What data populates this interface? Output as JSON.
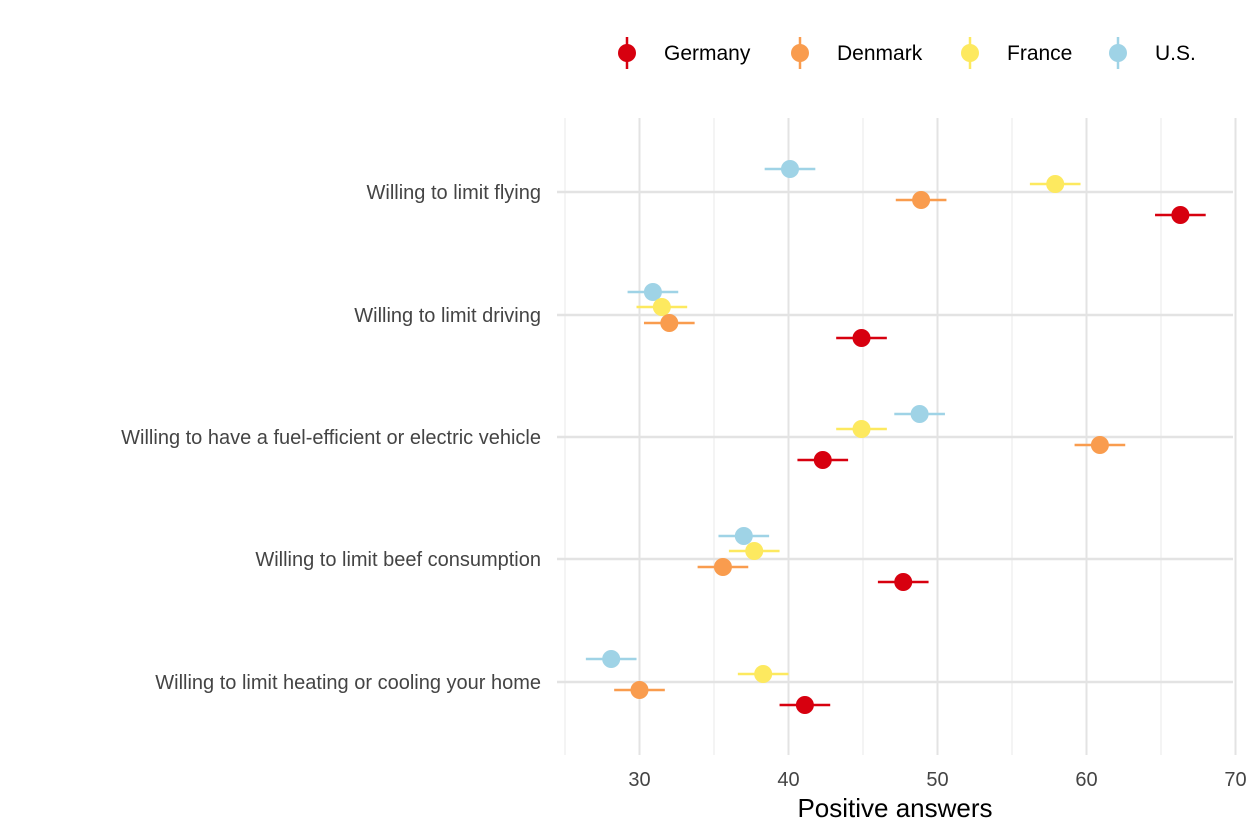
{
  "chart_data": {
    "type": "scatter",
    "subtype": "dot-with-error-bars",
    "xlabel": "Positive answers",
    "ylabel": "",
    "xlim": [
      25,
      70
    ],
    "x_ticks": [
      30,
      40,
      50,
      60,
      70
    ],
    "grid": true,
    "legend_position": "top",
    "categories": [
      "Willing to limit flying",
      "Willing to limit driving",
      "Willing to have a fuel-efficient or electric vehicle",
      "Willing to limit beef consumption",
      "Willing to limit heating or cooling your home"
    ],
    "series": [
      {
        "name": "Germany",
        "color": "#d7000f",
        "values": [
          66.3,
          44.9,
          42.3,
          47.7,
          41.1
        ],
        "errors": [
          1.7,
          1.7,
          1.7,
          1.7,
          1.7
        ]
      },
      {
        "name": "Denmark",
        "color": "#f99c4e",
        "values": [
          48.9,
          32.0,
          60.9,
          35.6,
          30.0
        ],
        "errors": [
          1.7,
          1.7,
          1.7,
          1.7,
          1.7
        ]
      },
      {
        "name": "France",
        "color": "#fde95f",
        "values": [
          57.9,
          31.5,
          44.9,
          37.7,
          38.3
        ],
        "errors": [
          1.7,
          1.7,
          1.7,
          1.7,
          1.7
        ]
      },
      {
        "name": "U.S.",
        "color": "#9fd3e6",
        "values": [
          40.1,
          30.9,
          48.8,
          37.0,
          28.1
        ],
        "errors": [
          1.7,
          1.7,
          1.7,
          1.7,
          1.7
        ]
      }
    ]
  }
}
